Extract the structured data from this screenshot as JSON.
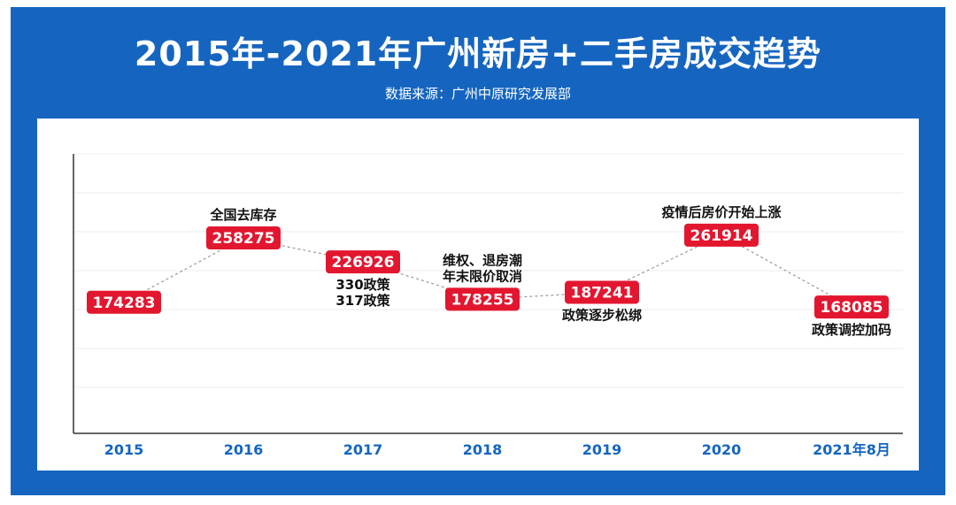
{
  "header": {
    "title": "2015年-2021年广州新房+二手房成交趋势",
    "source": "数据来源：广州中原研究发展部"
  },
  "colors": {
    "banner": "#1565c0",
    "label_box": "#e3162f",
    "axis_label": "#1565c0"
  },
  "chart_data": {
    "type": "line",
    "categories": [
      "2015",
      "2016",
      "2017",
      "2018",
      "2019",
      "2020",
      "2021年8月"
    ],
    "values": [
      174283,
      258275,
      226926,
      178255,
      187241,
      261914,
      168085
    ],
    "data_labels": [
      "174283",
      "258275",
      "226926",
      "178255",
      "187241",
      "261914",
      "168085"
    ],
    "annotations": [
      {
        "index": 1,
        "position": "above",
        "lines": [
          "全国去库存"
        ]
      },
      {
        "index": 2,
        "position": "below",
        "lines": [
          "330政策",
          "317政策"
        ]
      },
      {
        "index": 3,
        "position": "above",
        "lines": [
          "维权、退房潮",
          "年末限价取消"
        ]
      },
      {
        "index": 4,
        "position": "below",
        "lines": [
          "政策逐步松绑"
        ]
      },
      {
        "index": 5,
        "position": "above",
        "lines": [
          "疫情后房价开始上涨"
        ]
      },
      {
        "index": 6,
        "position": "below",
        "lines": [
          "政策调控加码"
        ]
      }
    ],
    "line_style": "dashed",
    "grid": true
  }
}
